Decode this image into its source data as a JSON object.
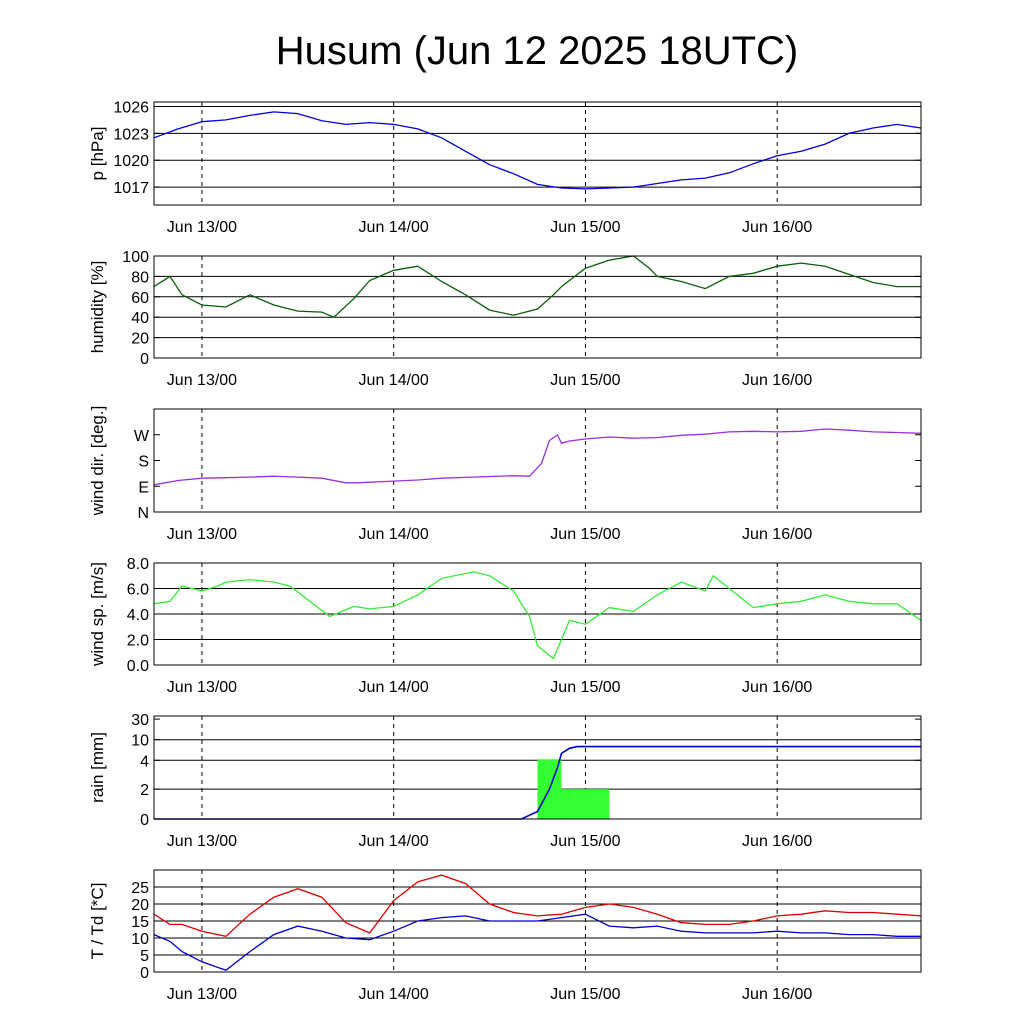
{
  "title": "Husum (Jun 12 2025 18UTC)",
  "x_ticks": [
    "Jun 13/00",
    "Jun 14/00",
    "Jun 15/00",
    "Jun 16/00"
  ],
  "colors": {
    "pressure": "#0000dd",
    "humidity": "#0a5c0a",
    "wind_dir": "#9932dd",
    "wind_speed": "#33ee33",
    "rain_bar": "#33ff33",
    "rain_line": "#0000cc",
    "temperature": "#dd0000",
    "dewpoint": "#0000cc"
  },
  "chart_data": [
    {
      "id": "pressure",
      "type": "line",
      "ylabel": "p [hPa]",
      "ylim": [
        1015,
        1026.5
      ],
      "yticks": [
        {
          "v": 1017,
          "label": "1017"
        },
        {
          "v": 1020,
          "label": "1020"
        },
        {
          "v": 1023,
          "label": "1023"
        },
        {
          "v": 1026,
          "label": "1026"
        }
      ],
      "gridlines": [
        1017,
        1020,
        1023,
        1026
      ],
      "series": [
        {
          "color_key": "pressure",
          "x": [
            0,
            3,
            6,
            9,
            12,
            15,
            18,
            21,
            24,
            27,
            30,
            33,
            36,
            39,
            42,
            45,
            48,
            51,
            54,
            57,
            60,
            63,
            66,
            69,
            72,
            75,
            78,
            81,
            84,
            87,
            90,
            93,
            96
          ],
          "y": [
            1022.5,
            1023.5,
            1024.3,
            1024.5,
            1025.0,
            1025.4,
            1025.2,
            1024.4,
            1024.0,
            1024.2,
            1024.0,
            1023.5,
            1022.5,
            1021.0,
            1019.5,
            1018.5,
            1017.3,
            1016.9,
            1016.8,
            1016.9,
            1017.0,
            1017.4,
            1017.8,
            1018.0,
            1018.6,
            1019.6,
            1020.5,
            1021.0,
            1021.8,
            1023.0,
            1023.6,
            1024.0,
            1023.6
          ]
        }
      ]
    },
    {
      "id": "humidity",
      "type": "line",
      "ylabel": "humidity [%]",
      "ylim": [
        0,
        100
      ],
      "yticks": [
        {
          "v": 0,
          "label": "0"
        },
        {
          "v": 20,
          "label": "20"
        },
        {
          "v": 40,
          "label": "40"
        },
        {
          "v": 60,
          "label": "60"
        },
        {
          "v": 80,
          "label": "80"
        },
        {
          "v": 100,
          "label": "100"
        }
      ],
      "gridlines": [
        20,
        40,
        60,
        80
      ],
      "series": [
        {
          "color_key": "humidity",
          "x": [
            0,
            2,
            3.5,
            6,
            9,
            12,
            15,
            18,
            21,
            22.5,
            25,
            27,
            30,
            33,
            36,
            39,
            42,
            45,
            48,
            50,
            51,
            54,
            57,
            60,
            62,
            63,
            66,
            69,
            72,
            75,
            78,
            81,
            84,
            87,
            90,
            93,
            96
          ],
          "y": [
            70,
            80,
            62,
            52,
            50,
            62,
            52,
            46,
            45,
            40,
            58,
            76,
            86,
            90,
            75,
            62,
            47,
            42,
            48,
            62,
            70,
            88,
            96,
            100,
            88,
            80,
            75,
            68,
            80,
            83,
            90,
            93,
            90,
            82,
            74,
            70,
            70
          ]
        }
      ]
    },
    {
      "id": "wind_dir",
      "type": "line",
      "ylabel": "wind dir. [deg.]",
      "ylim": [
        0,
        360
      ],
      "yticks": [
        {
          "v": 0,
          "label": "N"
        },
        {
          "v": 90,
          "label": "E"
        },
        {
          "v": 180,
          "label": "S"
        },
        {
          "v": 270,
          "label": "W"
        }
      ],
      "gridlines": [],
      "series": [
        {
          "color_key": "wind_dir",
          "x": [
            0,
            3,
            6,
            9,
            12,
            15,
            18,
            21,
            24,
            25.5,
            27,
            30,
            33,
            36,
            39,
            42,
            45,
            47,
            48.5,
            49.5,
            50.5,
            51,
            52,
            54,
            57,
            60,
            63,
            66,
            69,
            72,
            75,
            78,
            81,
            84,
            87,
            90,
            93,
            96
          ],
          "y": [
            95,
            110,
            118,
            120,
            122,
            125,
            122,
            118,
            102,
            102,
            104,
            108,
            112,
            118,
            121,
            124,
            127,
            125,
            170,
            250,
            270,
            240,
            248,
            255,
            262,
            258,
            260,
            268,
            272,
            280,
            282,
            280,
            282,
            290,
            286,
            280,
            278,
            275
          ]
        }
      ]
    },
    {
      "id": "wind_speed",
      "type": "line",
      "ylabel": "wind sp. [m/s]",
      "ylim": [
        0,
        8
      ],
      "yticks": [
        {
          "v": 0,
          "label": "0.0"
        },
        {
          "v": 2,
          "label": "2.0"
        },
        {
          "v": 4,
          "label": "4.0"
        },
        {
          "v": 6,
          "label": "6.0"
        },
        {
          "v": 8,
          "label": "8.0"
        }
      ],
      "gridlines": [
        2,
        4,
        6
      ],
      "series": [
        {
          "color_key": "wind_speed",
          "x": [
            0,
            2,
            3.5,
            6,
            8,
            9,
            12,
            15,
            17,
            22,
            25,
            27,
            30,
            33,
            36,
            40,
            42,
            45,
            47,
            48,
            50,
            52,
            54,
            57,
            60,
            63,
            66,
            69,
            70,
            72,
            75,
            78,
            81,
            84,
            87,
            90,
            93,
            96
          ],
          "y": [
            4.8,
            5.0,
            6.2,
            5.8,
            6.2,
            6.5,
            6.7,
            6.5,
            6.2,
            3.8,
            4.6,
            4.4,
            4.6,
            5.5,
            6.8,
            7.3,
            7.0,
            5.8,
            3.8,
            1.5,
            0.5,
            3.5,
            3.2,
            4.5,
            4.2,
            5.5,
            6.5,
            5.8,
            7.0,
            6.0,
            4.5,
            4.8,
            5.0,
            5.5,
            5.0,
            4.8,
            4.8,
            3.5
          ]
        }
      ]
    },
    {
      "id": "rain",
      "type": "bar",
      "ylabel": "rain [mm]",
      "ylim": [
        0,
        32
      ],
      "yticks": [
        {
          "v": 0,
          "label": "0"
        },
        {
          "v": 2,
          "label": "2"
        },
        {
          "v": 4,
          "label": "4"
        },
        {
          "v": 10,
          "label": "10"
        },
        {
          "v": 30,
          "label": "30"
        }
      ],
      "gridlines": [
        2,
        4,
        10
      ],
      "bars": [
        {
          "x0": 48,
          "x1": 51,
          "value": 4.3
        },
        {
          "x0": 51,
          "x1": 57,
          "value": 2.0
        }
      ],
      "cumulative": {
        "x": [
          0,
          46,
          48,
          49.5,
          50.5,
          51,
          52,
          53,
          57,
          66,
          80,
          96
        ],
        "y": [
          0,
          0,
          0.5,
          2.0,
          3.5,
          6.0,
          7.5,
          8.0,
          8.0,
          8.0,
          8.0,
          8.0
        ]
      }
    },
    {
      "id": "temperature",
      "type": "line",
      "ylabel": "T / Td [*C]",
      "ylim": [
        0,
        30
      ],
      "yticks": [
        {
          "v": 0,
          "label": "0"
        },
        {
          "v": 5,
          "label": "5"
        },
        {
          "v": 10,
          "label": "10"
        },
        {
          "v": 15,
          "label": "15"
        },
        {
          "v": 20,
          "label": "20"
        },
        {
          "v": 25,
          "label": "25"
        }
      ],
      "gridlines": [
        5,
        10,
        15,
        20,
        25
      ],
      "series": [
        {
          "color_key": "temperature",
          "x": [
            0,
            2,
            3.5,
            6,
            9,
            12,
            15,
            18,
            21,
            24,
            27,
            30,
            33,
            36,
            39,
            42,
            45,
            48,
            51,
            54,
            57,
            60,
            63,
            66,
            69,
            72,
            75,
            78,
            81,
            84,
            87,
            90,
            93,
            96
          ],
          "y": [
            17,
            14,
            14,
            12,
            10.5,
            17,
            22,
            24.5,
            22,
            14.5,
            11.5,
            21,
            26.5,
            28.5,
            26,
            20,
            17.5,
            16.5,
            17,
            19,
            20,
            19,
            17,
            14.5,
            14,
            14,
            15,
            16.5,
            17,
            18,
            17.5,
            17.5,
            17,
            16.5
          ]
        },
        {
          "color_key": "dewpoint",
          "x": [
            0,
            2,
            3.5,
            6,
            9,
            12,
            15,
            18,
            21,
            24,
            27,
            30,
            33,
            36,
            39,
            42,
            45,
            48,
            51,
            54,
            57,
            60,
            63,
            66,
            69,
            72,
            75,
            78,
            81,
            84,
            87,
            90,
            93,
            96
          ],
          "y": [
            11,
            9,
            6,
            3,
            0.5,
            6,
            11,
            13.5,
            12,
            10,
            9.5,
            12,
            15,
            16,
            16.5,
            15,
            15,
            15,
            16,
            17,
            13.5,
            13,
            13.5,
            12,
            11.5,
            11.5,
            11.5,
            12,
            11.5,
            11.5,
            11,
            11,
            10.5,
            10.5
          ]
        }
      ]
    }
  ]
}
